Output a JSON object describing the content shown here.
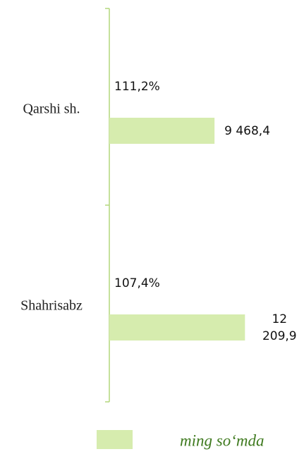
{
  "chart_data": {
    "type": "bar",
    "orientation": "horizontal",
    "categories": [
      "Qarshi sh.",
      "Shahrisabz"
    ],
    "series": [
      {
        "name": "ming so‘mda",
        "color": "#d6ecae",
        "values": [
          9468.4,
          12209.9
        ],
        "value_labels": [
          "9 468,4",
          "12 209,9"
        ]
      }
    ],
    "annotations": [
      "111,2%",
      "107,4%"
    ],
    "xlim": [
      0,
      16000
    ]
  }
}
